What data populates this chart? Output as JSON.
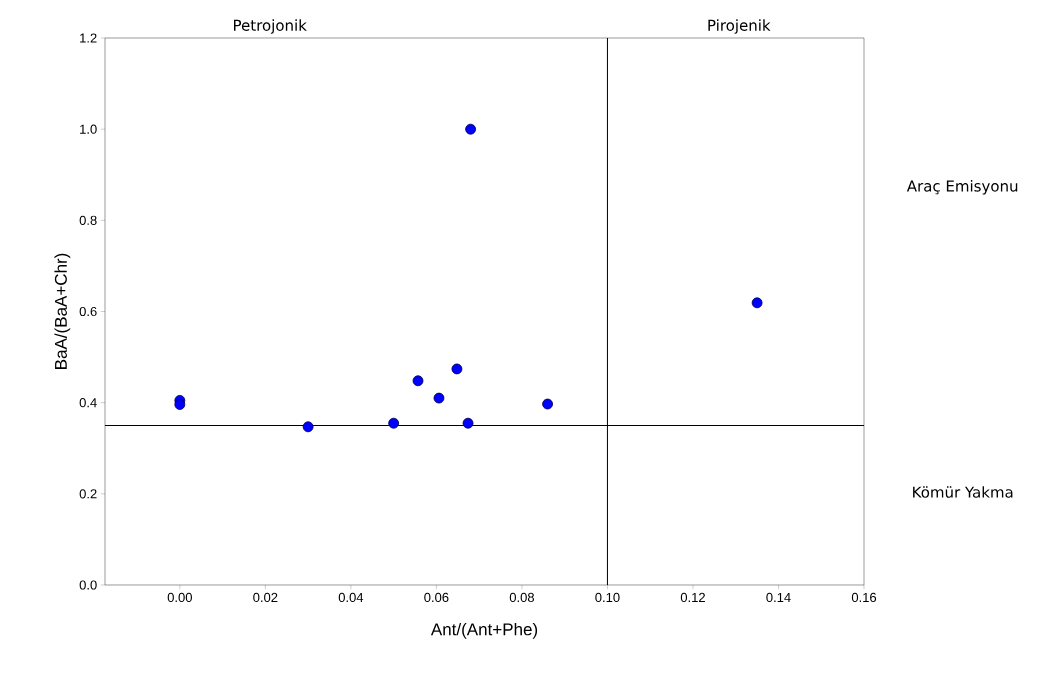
{
  "chart_data": {
    "type": "scatter",
    "xlabel": "Ant/(Ant+Phe)",
    "ylabel": "BaA/(BaA+Chr)",
    "x": [
      0.0,
      0.0,
      0.03,
      0.05,
      0.0557,
      0.0606,
      0.0648,
      0.0674,
      0.068,
      0.086,
      0.135
    ],
    "values": [
      0.405,
      0.396,
      0.347,
      0.355,
      0.448,
      0.41,
      0.474,
      0.355,
      1.0,
      0.397,
      0.619
    ],
    "color": "#0000ff",
    "marker": "circle",
    "grid": false,
    "xlim": [
      -0.0175,
      0.16
    ],
    "ylim": [
      0,
      1.2
    ],
    "xticks": [
      {
        "value": 0,
        "label": "0.00"
      },
      0.02,
      0.04,
      0.06,
      0.08,
      {
        "value": 0.1,
        "label": "0.10"
      },
      0.12,
      0.14,
      0.16
    ],
    "yticks": [
      {
        "value": 0,
        "label": "0.0"
      },
      0.2,
      0.4,
      0.6,
      0.8,
      {
        "value": 1,
        "label": "1.0"
      },
      1.2
    ],
    "ref_lines": [
      {
        "axis": "x",
        "value": 0.1,
        "color": "#000000"
      },
      {
        "axis": "y",
        "value": 0.35,
        "color": "#000000"
      }
    ],
    "annotations": [
      "Petrojonik",
      "Pirojenik",
      "Araç Emisyonu",
      "Kömür Yakma"
    ]
  }
}
